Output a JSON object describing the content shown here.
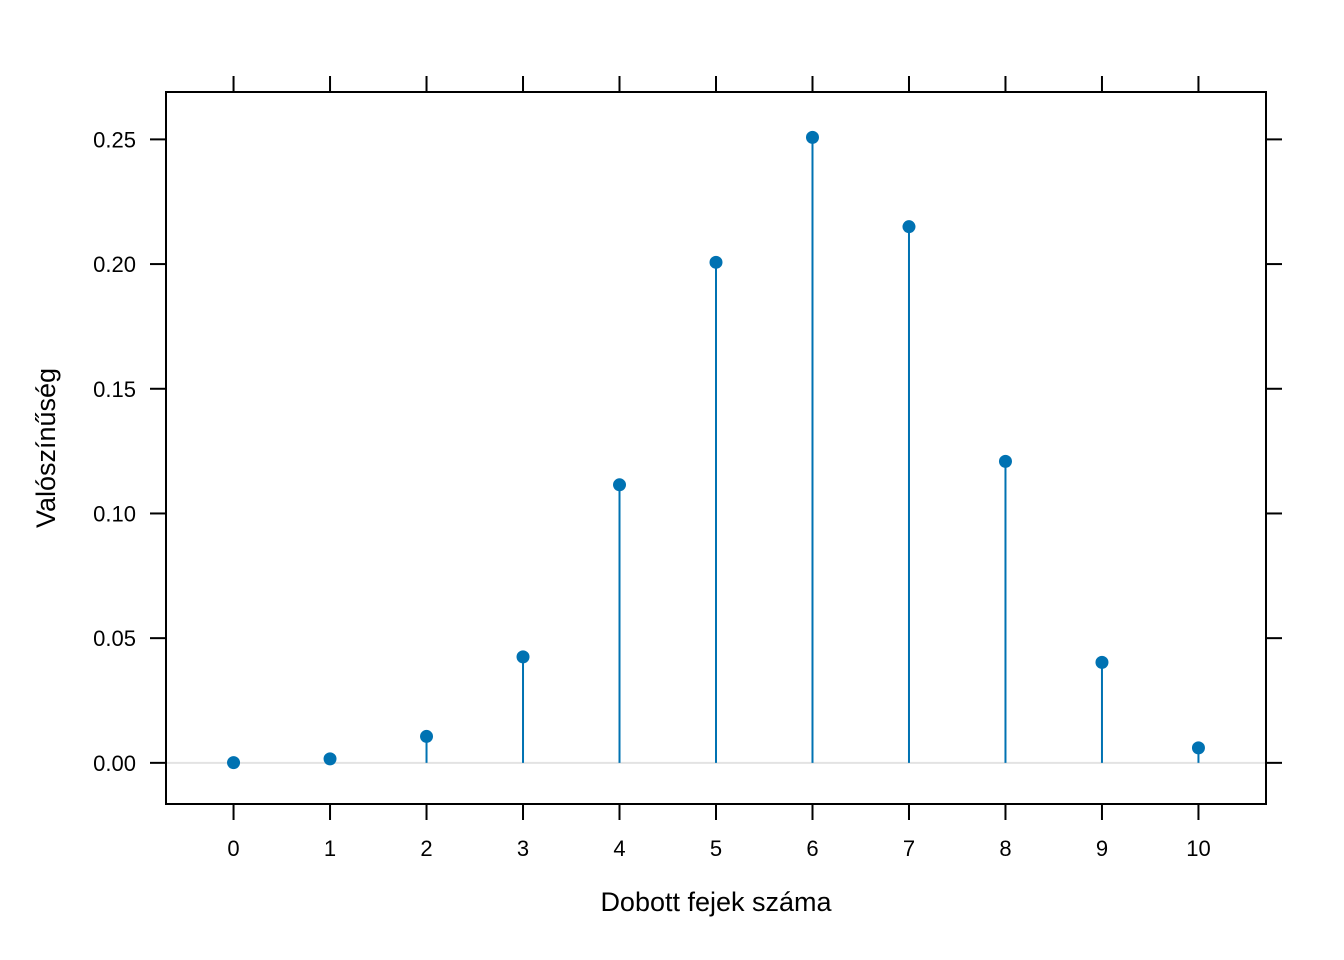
{
  "chart_data": {
    "type": "lollipop",
    "xlabel": "Dobott fejek száma",
    "ylabel": "Valószínűség",
    "x": [
      0,
      1,
      2,
      3,
      4,
      5,
      6,
      7,
      8,
      9,
      10
    ],
    "values": [
      0.0001,
      0.0016,
      0.0106,
      0.0425,
      0.1115,
      0.2007,
      0.2508,
      0.215,
      0.1209,
      0.0403,
      0.006
    ],
    "xlim": [
      -0.7,
      10.7
    ],
    "ylim": [
      -0.0165,
      0.269
    ],
    "x_ticks": [
      0,
      1,
      2,
      3,
      4,
      5,
      6,
      7,
      8,
      9,
      10
    ],
    "y_ticks": [
      0.0,
      0.05,
      0.1,
      0.15,
      0.2,
      0.25
    ],
    "y_tick_labels": [
      "0.00",
      "0.05",
      "0.10",
      "0.15",
      "0.20",
      "0.25"
    ],
    "baseline": 0,
    "grid": false,
    "colors": {
      "series": "#0072B2",
      "baseline": "#e3e3e3",
      "axis": "#000000"
    }
  }
}
